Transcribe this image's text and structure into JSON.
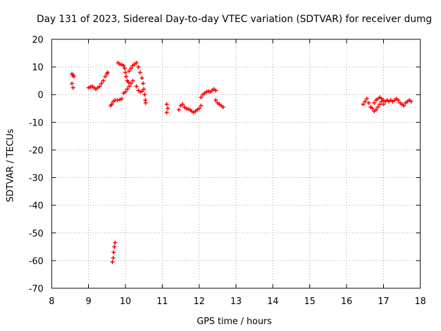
{
  "chart_data": {
    "type": "scatter",
    "title": "Day 131 of 2023, Sidereal Day-to-day VTEC variation (SDTVAR) for receiver dumg",
    "xlabel": "GPS time / hours",
    "ylabel": "SDTVAR / TECUs",
    "xlim": [
      8,
      18
    ],
    "ylim": [
      -70,
      20
    ],
    "xticks": [
      "8",
      "9",
      "10",
      "11",
      "12",
      "13",
      "14",
      "15",
      "16",
      "17",
      "18"
    ],
    "yticks": [
      "20",
      "10",
      "0",
      "-10",
      "-20",
      "-30",
      "-40",
      "-50",
      "-60",
      "-70"
    ],
    "grid": true,
    "marker": "+",
    "color": "#ff0000",
    "series": [
      {
        "name": "SDTVAR",
        "points": [
          [
            8.55,
            7.5
          ],
          [
            8.58,
            7.0
          ],
          [
            8.6,
            6.5
          ],
          [
            8.55,
            4.0
          ],
          [
            8.58,
            2.5
          ],
          [
            9.0,
            2.5
          ],
          [
            9.05,
            2.8
          ],
          [
            9.1,
            3.0
          ],
          [
            9.15,
            2.5
          ],
          [
            9.2,
            2.0
          ],
          [
            9.25,
            2.5
          ],
          [
            9.3,
            3.0
          ],
          [
            9.35,
            4.0
          ],
          [
            9.4,
            5.0
          ],
          [
            9.45,
            6.5
          ],
          [
            9.5,
            7.5
          ],
          [
            9.52,
            8.0
          ],
          [
            9.6,
            -4.0
          ],
          [
            9.63,
            -3.5
          ],
          [
            9.67,
            -2.5
          ],
          [
            9.72,
            -2.0
          ],
          [
            9.78,
            -2.0
          ],
          [
            9.85,
            -1.8
          ],
          [
            9.9,
            -1.5
          ],
          [
            9.65,
            -60.5
          ],
          [
            9.67,
            -59.0
          ],
          [
            9.68,
            -57.0
          ],
          [
            9.7,
            -55.0
          ],
          [
            9.72,
            -53.5
          ],
          [
            9.8,
            11.5
          ],
          [
            9.85,
            11.0
          ],
          [
            9.9,
            10.8
          ],
          [
            9.95,
            10.5
          ],
          [
            9.98,
            9.5
          ],
          [
            10.0,
            8.0
          ],
          [
            10.02,
            6.5
          ],
          [
            10.05,
            5.0
          ],
          [
            10.08,
            4.5
          ],
          [
            9.95,
            0.5
          ],
          [
            10.0,
            1.0
          ],
          [
            10.05,
            2.0
          ],
          [
            10.1,
            3.0
          ],
          [
            10.15,
            4.0
          ],
          [
            10.2,
            5.0
          ],
          [
            10.1,
            8.5
          ],
          [
            10.15,
            9.5
          ],
          [
            10.2,
            10.5
          ],
          [
            10.25,
            11.0
          ],
          [
            10.3,
            11.5
          ],
          [
            10.35,
            10.0
          ],
          [
            10.4,
            8.0
          ],
          [
            10.45,
            6.0
          ],
          [
            10.48,
            4.0
          ],
          [
            10.5,
            2.0
          ],
          [
            10.52,
            0.0
          ],
          [
            10.54,
            -2.0
          ],
          [
            10.55,
            -3.0
          ],
          [
            10.3,
            3.0
          ],
          [
            10.35,
            1.5
          ],
          [
            10.4,
            1.0
          ],
          [
            10.45,
            1.2
          ],
          [
            11.12,
            -3.5
          ],
          [
            11.15,
            -5.0
          ],
          [
            11.12,
            -6.5
          ],
          [
            11.45,
            -5.5
          ],
          [
            11.5,
            -4.0
          ],
          [
            11.55,
            -3.5
          ],
          [
            11.6,
            -4.5
          ],
          [
            11.65,
            -5.0
          ],
          [
            11.7,
            -5.2
          ],
          [
            11.75,
            -5.5
          ],
          [
            11.8,
            -6.0
          ],
          [
            11.85,
            -6.5
          ],
          [
            11.9,
            -6.0
          ],
          [
            11.95,
            -5.5
          ],
          [
            12.0,
            -5.0
          ],
          [
            12.05,
            -4.0
          ],
          [
            12.05,
            -1.0
          ],
          [
            12.1,
            0.0
          ],
          [
            12.15,
            0.5
          ],
          [
            12.2,
            1.0
          ],
          [
            12.25,
            1.2
          ],
          [
            12.3,
            1.0
          ],
          [
            12.35,
            1.5
          ],
          [
            12.4,
            2.0
          ],
          [
            12.45,
            1.5
          ],
          [
            12.45,
            -2.0
          ],
          [
            12.5,
            -3.0
          ],
          [
            12.55,
            -3.5
          ],
          [
            12.6,
            -4.0
          ],
          [
            12.65,
            -4.5
          ],
          [
            16.45,
            -3.5
          ],
          [
            16.5,
            -2.5
          ],
          [
            16.55,
            -1.5
          ],
          [
            16.6,
            -3.0
          ],
          [
            16.65,
            -4.5
          ],
          [
            16.7,
            -5.0
          ],
          [
            16.75,
            -6.0
          ],
          [
            16.8,
            -5.5
          ],
          [
            16.85,
            -4.5
          ],
          [
            16.9,
            -3.5
          ],
          [
            16.95,
            -2.5
          ],
          [
            17.0,
            -2.0
          ],
          [
            16.75,
            -3.0
          ],
          [
            16.8,
            -2.0
          ],
          [
            16.85,
            -1.5
          ],
          [
            16.9,
            -1.0
          ],
          [
            16.95,
            -1.5
          ],
          [
            17.0,
            -3.5
          ],
          [
            17.05,
            -2.5
          ],
          [
            17.1,
            -2.0
          ],
          [
            17.15,
            -2.5
          ],
          [
            17.2,
            -2.0
          ],
          [
            17.25,
            -2.5
          ],
          [
            17.3,
            -2.0
          ],
          [
            17.35,
            -1.5
          ],
          [
            17.4,
            -2.0
          ],
          [
            17.45,
            -3.0
          ],
          [
            17.5,
            -3.5
          ],
          [
            17.55,
            -4.0
          ],
          [
            17.6,
            -3.0
          ],
          [
            17.65,
            -2.5
          ],
          [
            17.7,
            -2.0
          ],
          [
            17.75,
            -2.5
          ]
        ]
      }
    ]
  }
}
